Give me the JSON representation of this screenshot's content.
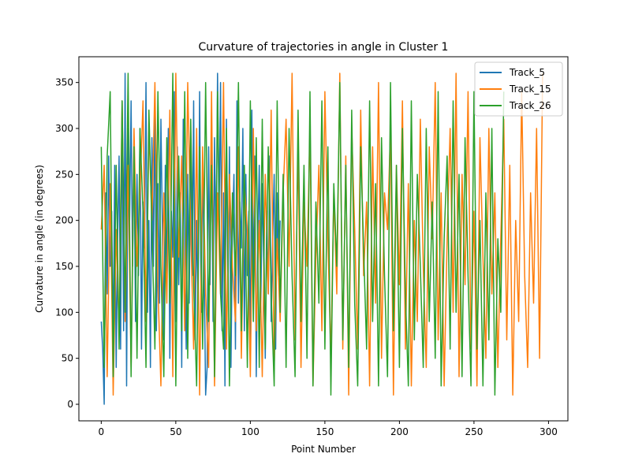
{
  "chart_data": {
    "type": "line",
    "title": "Curvature of trajectories in angle in Cluster 1",
    "xlabel": "Point Number",
    "ylabel": "Curvature in angle (in degrees)",
    "xlim": [
      -15,
      313
    ],
    "ylim": [
      -18,
      378
    ],
    "xticks": [
      0,
      50,
      100,
      150,
      200,
      250,
      300
    ],
    "yticks": [
      0,
      50,
      100,
      150,
      200,
      250,
      300,
      350
    ],
    "grid": false,
    "legend_position": "upper right",
    "series": [
      {
        "name": "Track_5",
        "color": "#1f77b4",
        "x": [
          0,
          1,
          2,
          3,
          4,
          5,
          6,
          7,
          8,
          9,
          10,
          11,
          12,
          13,
          14,
          15,
          16,
          17,
          18,
          19,
          20,
          21,
          22,
          23,
          24,
          25,
          26,
          27,
          28,
          29,
          30,
          31,
          32,
          33,
          34,
          35,
          36,
          37,
          38,
          39,
          40,
          41,
          42,
          43,
          44,
          45,
          46,
          47,
          48,
          49,
          50,
          51,
          52,
          53,
          54,
          55,
          56,
          57,
          58,
          59,
          60,
          61,
          62,
          63,
          64,
          65,
          66,
          67,
          68,
          69,
          70,
          71,
          72,
          73,
          74,
          75,
          76,
          77,
          78,
          79,
          80,
          81,
          82,
          83,
          84,
          85,
          86,
          87,
          88,
          89,
          90,
          91,
          92,
          93,
          94,
          95,
          96,
          97,
          98,
          99,
          100,
          101,
          102,
          103,
          104,
          105,
          106,
          107,
          108,
          109,
          110,
          111,
          112,
          113,
          114,
          115,
          116,
          117,
          118,
          119,
          120
        ],
        "values": [
          90,
          60,
          0,
          230,
          120,
          270,
          150,
          210,
          60,
          260,
          40,
          180,
          270,
          60,
          330,
          80,
          360,
          20,
          300,
          200,
          330,
          150,
          280,
          90,
          250,
          140,
          300,
          60,
          220,
          170,
          350,
          100,
          200,
          40,
          290,
          150,
          330,
          80,
          240,
          110,
          310,
          190,
          70,
          260,
          130,
          300,
          50,
          210,
          160,
          340,
          90,
          280,
          130,
          230,
          40,
          310,
          180,
          60,
          250,
          110,
          290,
          140,
          330,
          70,
          200,
          110,
          340,
          100,
          260,
          150,
          10,
          40,
          280,
          130,
          320,
          90,
          290,
          150,
          360,
          200,
          350,
          80,
          230,
          20,
          310,
          120,
          280,
          40,
          190,
          250,
          60,
          330,
          110,
          220,
          170,
          300,
          80,
          250,
          140,
          210,
          60,
          320,
          120,
          270,
          30,
          180,
          260,
          100,
          240,
          150,
          50,
          210,
          120,
          270,
          90,
          180,
          250,
          60,
          230,
          140,
          200
        ]
      },
      {
        "name": "Track_15",
        "color": "#ff7f0e",
        "x": [
          0,
          2,
          4,
          6,
          8,
          10,
          12,
          14,
          16,
          18,
          20,
          22,
          24,
          26,
          28,
          30,
          32,
          34,
          36,
          38,
          40,
          42,
          44,
          46,
          48,
          50,
          52,
          54,
          56,
          58,
          60,
          62,
          64,
          66,
          68,
          70,
          72,
          74,
          76,
          78,
          80,
          82,
          84,
          86,
          88,
          90,
          92,
          94,
          96,
          98,
          100,
          102,
          104,
          106,
          108,
          110,
          112,
          114,
          116,
          118,
          120,
          122,
          124,
          126,
          128,
          130,
          132,
          134,
          136,
          138,
          140,
          142,
          144,
          146,
          148,
          150,
          152,
          154,
          156,
          158,
          160,
          162,
          164,
          166,
          168,
          170,
          172,
          174,
          176,
          178,
          180,
          182,
          184,
          186,
          188,
          190,
          192,
          194,
          196,
          198,
          200,
          202,
          204,
          206,
          208,
          210,
          212,
          214,
          216,
          218,
          220,
          222,
          224,
          226,
          228,
          230,
          232,
          234,
          236,
          238,
          240,
          242,
          244,
          246,
          248,
          250,
          252,
          254,
          256,
          258,
          260,
          262,
          264,
          266,
          268,
          270,
          272,
          274,
          276,
          278,
          280,
          282,
          284,
          286,
          288,
          290,
          292,
          294,
          296
        ],
        "values": [
          190,
          260,
          30,
          240,
          10,
          190,
          80,
          330,
          90,
          260,
          40,
          300,
          150,
          230,
          330,
          90,
          300,
          200,
          350,
          130,
          20,
          230,
          110,
          320,
          30,
          360,
          160,
          270,
          80,
          350,
          190,
          60,
          300,
          10,
          280,
          120,
          40,
          340,
          20,
          230,
          120,
          350,
          60,
          250,
          150,
          90,
          280,
          50,
          240,
          190,
          30,
          300,
          80,
          200,
          30,
          250,
          120,
          320,
          40,
          180,
          90,
          230,
          310,
          150,
          360,
          70,
          280,
          40,
          220,
          150,
          300,
          20,
          160,
          260,
          80,
          340,
          180,
          50,
          230,
          120,
          360,
          60,
          270,
          10,
          300,
          190,
          60,
          320,
          140,
          220,
          20,
          280,
          110,
          350,
          50,
          230,
          190,
          300,
          10,
          260,
          130,
          330,
          60,
          240,
          20,
          200,
          90,
          310,
          150,
          40,
          280,
          180,
          350,
          70,
          230,
          20,
          180,
          300,
          100,
          360,
          30,
          250,
          130,
          340,
          60,
          210,
          20,
          290,
          160,
          50,
          300,
          120,
          230,
          40,
          180,
          310,
          70,
          260,
          10,
          200,
          90,
          340,
          140,
          40,
          230,
          110,
          300,
          50,
          360
        ]
      },
      {
        "name": "Track_26",
        "color": "#2ca02c",
        "x": [
          0,
          2,
          4,
          6,
          8,
          10,
          12,
          14,
          16,
          18,
          20,
          22,
          24,
          26,
          28,
          30,
          32,
          34,
          36,
          38,
          40,
          42,
          44,
          46,
          48,
          50,
          52,
          54,
          56,
          58,
          60,
          62,
          64,
          66,
          68,
          70,
          72,
          74,
          76,
          78,
          80,
          82,
          84,
          86,
          88,
          90,
          92,
          94,
          96,
          98,
          100,
          102,
          104,
          106,
          108,
          110,
          112,
          114,
          116,
          118,
          120,
          122,
          124,
          126,
          128,
          130,
          132,
          134,
          136,
          138,
          140,
          142,
          144,
          146,
          148,
          150,
          152,
          154,
          156,
          158,
          160,
          162,
          164,
          166,
          168,
          170,
          172,
          174,
          176,
          178,
          180,
          182,
          184,
          186,
          188,
          190,
          192,
          194,
          196,
          198,
          200,
          202,
          204,
          206,
          208,
          210,
          212,
          214,
          216,
          218,
          220,
          222,
          224,
          226,
          228,
          230,
          232,
          234,
          236,
          238,
          240,
          242,
          244,
          246,
          248,
          250,
          252,
          254,
          256,
          258,
          260,
          262,
          264,
          266,
          268,
          270
        ],
        "values": [
          280,
          40,
          270,
          340,
          30,
          260,
          60,
          330,
          100,
          360,
          30,
          280,
          50,
          300,
          210,
          40,
          320,
          190,
          60,
          340,
          150,
          30,
          290,
          110,
          360,
          20,
          270,
          80,
          340,
          50,
          310,
          130,
          20,
          280,
          60,
          350,
          90,
          260,
          30,
          340,
          120,
          60,
          300,
          20,
          230,
          140,
          350,
          80,
          260,
          40,
          330,
          90,
          290,
          40,
          310,
          60,
          280,
          120,
          20,
          330,
          100,
          250,
          40,
          300,
          140,
          30,
          320,
          90,
          260,
          50,
          340,
          20,
          220,
          110,
          330,
          60,
          280,
          10,
          240,
          150,
          350,
          70,
          260,
          40,
          320,
          110,
          20,
          280,
          170,
          60,
          330,
          90,
          240,
          20,
          290,
          140,
          30,
          350,
          80,
          260,
          40,
          300,
          120,
          20,
          330,
          70,
          250,
          150,
          40,
          300,
          90,
          220,
          50,
          340,
          20,
          180,
          270,
          60,
          330,
          100,
          250,
          30,
          290,
          140,
          20,
          340,
          60,
          200,
          20,
          230,
          70,
          300,
          10,
          180,
          100,
          340
        ]
      }
    ]
  }
}
